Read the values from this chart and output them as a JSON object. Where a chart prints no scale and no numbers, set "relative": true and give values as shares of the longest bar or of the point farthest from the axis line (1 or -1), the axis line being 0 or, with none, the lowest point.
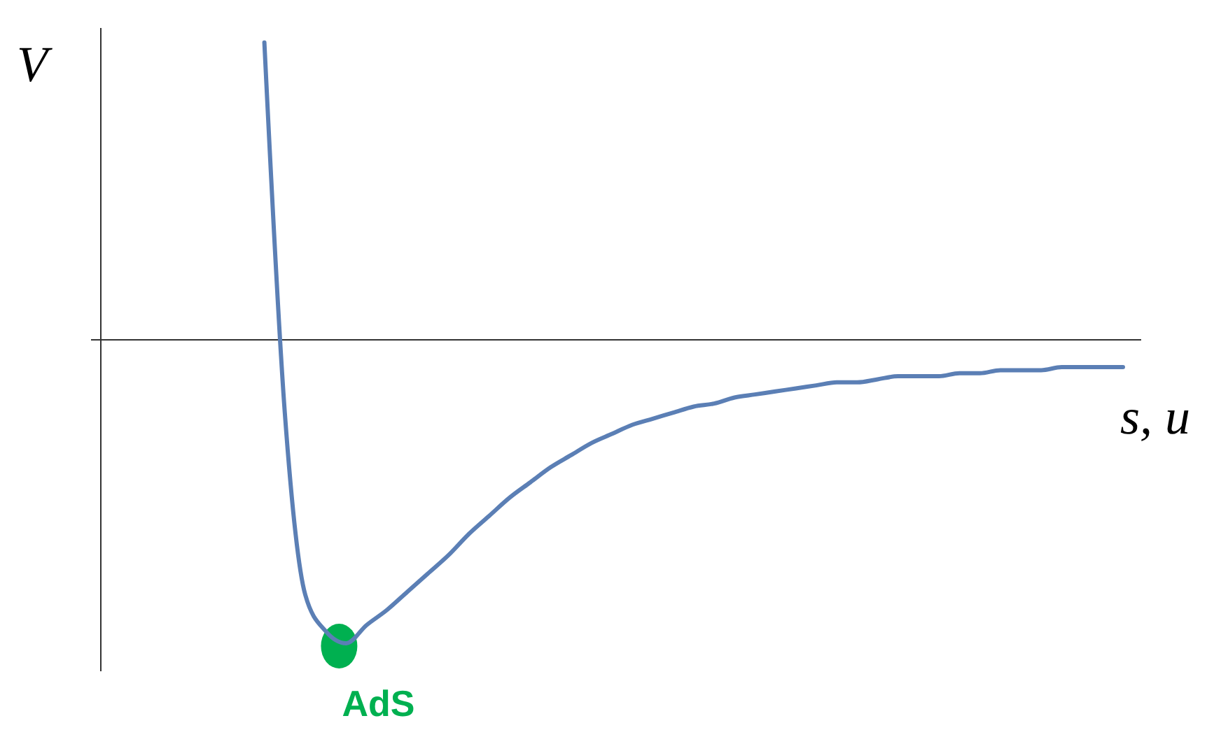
{
  "chart_data": {
    "type": "line",
    "relative": true,
    "xlabel": "s, u",
    "ylabel": "V",
    "color": "#5b7fb5",
    "categories": [
      null,
      null,
      null,
      null,
      null,
      null,
      null,
      null,
      null,
      null,
      null,
      null,
      null,
      null,
      null,
      null,
      null,
      null,
      null,
      null,
      null,
      null,
      null,
      null,
      null,
      null,
      null,
      null,
      null,
      null,
      null,
      null,
      null,
      null,
      null,
      null,
      null,
      null,
      null,
      null,
      null,
      null,
      null,
      null,
      null,
      null,
      null,
      null,
      null,
      null,
      null
    ],
    "values": [
      null,
      null,
      null,
      null,
      null,
      null,
      null,
      null,
      0.98,
      -0.24,
      -0.84,
      -0.96,
      -1,
      -0.94,
      -0.89,
      -0.83,
      -0.77,
      -0.71,
      -0.64,
      -0.58,
      -0.52,
      -0.47,
      -0.42,
      -0.38,
      -0.34,
      -0.31,
      -0.28,
      -0.26,
      -0.24,
      -0.22,
      -0.21,
      -0.19,
      -0.18,
      -0.17,
      -0.16,
      -0.15,
      -0.14,
      -0.14,
      -0.13,
      -0.12,
      -0.12,
      -0.12,
      -0.11,
      -0.11,
      -0.1,
      -0.1,
      -0.1,
      -0.09,
      -0.09,
      -0.09,
      -0.09
    ],
    "annotations": [
      "AdS"
    ]
  }
}
